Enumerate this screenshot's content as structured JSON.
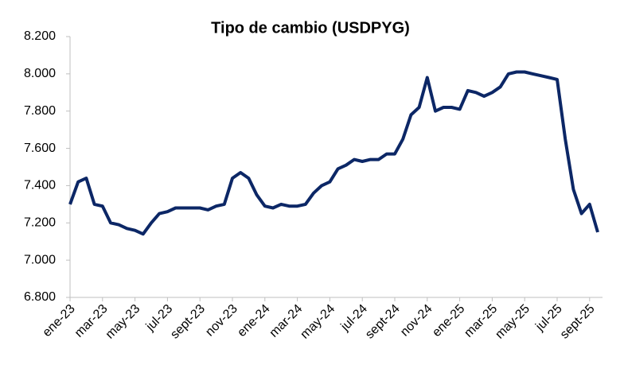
{
  "chart_data": {
    "type": "line",
    "title": "Tipo de cambio (USDPYG)",
    "categories": [
      "ene-23",
      null,
      null,
      null,
      "mar-23",
      null,
      null,
      null,
      "may-23",
      null,
      null,
      null,
      "jul-23",
      null,
      null,
      null,
      "sept-23",
      null,
      null,
      null,
      "nov-23",
      null,
      null,
      null,
      "ene-24",
      null,
      null,
      null,
      "mar-24",
      null,
      null,
      null,
      "may-24",
      null,
      null,
      null,
      "jul-24",
      null,
      null,
      null,
      "sept-24",
      null,
      null,
      null,
      "nov-24",
      null,
      null,
      null,
      "ene-25",
      null,
      null,
      null,
      "mar-25",
      null,
      null,
      null,
      "may-25",
      null,
      null,
      null,
      "jul-25",
      null,
      null,
      null,
      "sept-25",
      null
    ],
    "series": [
      {
        "name": "USDPYG",
        "color": "#0c2766",
        "values": [
          7300,
          7420,
          7440,
          7300,
          7290,
          7200,
          7190,
          7170,
          7160,
          7140,
          7200,
          7250,
          7260,
          7280,
          7280,
          7280,
          7280,
          7270,
          7290,
          7300,
          7440,
          7470,
          7440,
          7350,
          7290,
          7280,
          7300,
          7290,
          7290,
          7300,
          7360,
          7400,
          7420,
          7490,
          7510,
          7540,
          7530,
          7540,
          7540,
          7570,
          7570,
          7650,
          7780,
          7820,
          7980,
          7800,
          7820,
          7820,
          7810,
          7910,
          7900,
          7880,
          7900,
          7930,
          8000,
          8010,
          8010,
          8000,
          7990,
          7980,
          7970,
          7650,
          7380,
          7250,
          7300,
          7150
        ]
      }
    ],
    "ylim": [
      6800,
      8200
    ],
    "yticks": [
      {
        "value": 6800,
        "label": "6.800"
      },
      {
        "value": 7000,
        "label": "7.000"
      },
      {
        "value": 7200,
        "label": "7.200"
      },
      {
        "value": 7400,
        "label": "7.400"
      },
      {
        "value": 7600,
        "label": "7.600"
      },
      {
        "value": 7800,
        "label": "7.800"
      },
      {
        "value": 8000,
        "label": "8.000"
      },
      {
        "value": 8200,
        "label": "8.200"
      }
    ],
    "grid": false
  }
}
